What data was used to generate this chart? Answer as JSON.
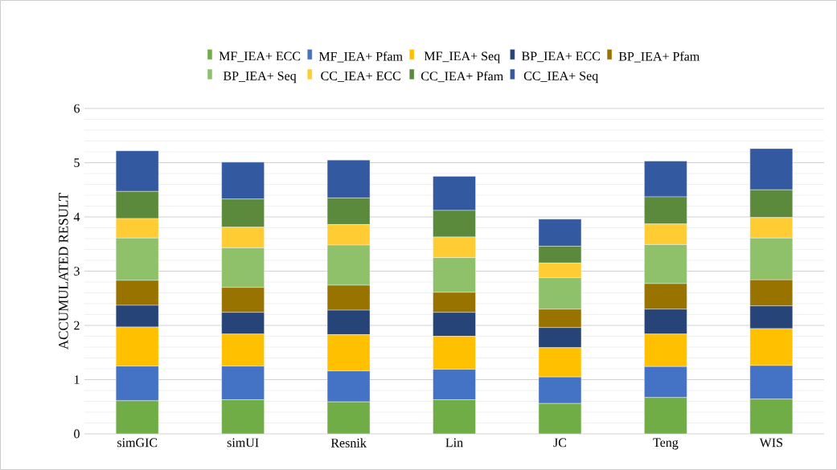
{
  "chart_data": {
    "type": "bar",
    "stacked": true,
    "ylabel": "ACCUMULATED RESULT",
    "categories": [
      "simGIC",
      "simUI",
      "Resnik",
      "Lin",
      "JC",
      "Teng",
      "WIS"
    ],
    "ylim": [
      0,
      6
    ],
    "yticks": [
      0,
      1,
      2,
      3,
      4,
      5,
      6
    ],
    "grid": "y",
    "legend": "top",
    "series": [
      {
        "name": "MF_IEA+ ECC",
        "color": "#70ad47",
        "values": [
          0.61,
          0.63,
          0.59,
          0.63,
          0.56,
          0.67,
          0.64
        ]
      },
      {
        "name": "MF_IEA+ Pfam",
        "color": "#4472c4",
        "values": [
          0.64,
          0.62,
          0.57,
          0.56,
          0.49,
          0.57,
          0.62
        ]
      },
      {
        "name": "MF_IEA+ Seq",
        "color": "#ffc000",
        "values": [
          0.72,
          0.59,
          0.67,
          0.61,
          0.54,
          0.6,
          0.68
        ]
      },
      {
        "name": "BP_IEA+ ECC",
        "color": "#264478",
        "values": [
          0.4,
          0.4,
          0.45,
          0.44,
          0.37,
          0.46,
          0.42
        ]
      },
      {
        "name": "BP_IEA+ Pfam",
        "color": "#997300",
        "values": [
          0.46,
          0.46,
          0.46,
          0.37,
          0.34,
          0.47,
          0.48
        ]
      },
      {
        "name": "BP_IEA+ Seq",
        "color": "#8fc16a",
        "values": [
          0.78,
          0.73,
          0.74,
          0.64,
          0.58,
          0.72,
          0.77
        ]
      },
      {
        "name": "CC_IEA+ ECC",
        "color": "#ffcd33",
        "values": [
          0.36,
          0.38,
          0.38,
          0.38,
          0.27,
          0.38,
          0.38
        ]
      },
      {
        "name": "CC_IEA+ Pfam",
        "color": "#5b8a3c",
        "values": [
          0.5,
          0.52,
          0.49,
          0.49,
          0.31,
          0.5,
          0.51
        ]
      },
      {
        "name": "CC_IEA+ Seq",
        "color": "#335aa1",
        "values": [
          0.75,
          0.68,
          0.7,
          0.63,
          0.5,
          0.66,
          0.76
        ]
      }
    ]
  }
}
